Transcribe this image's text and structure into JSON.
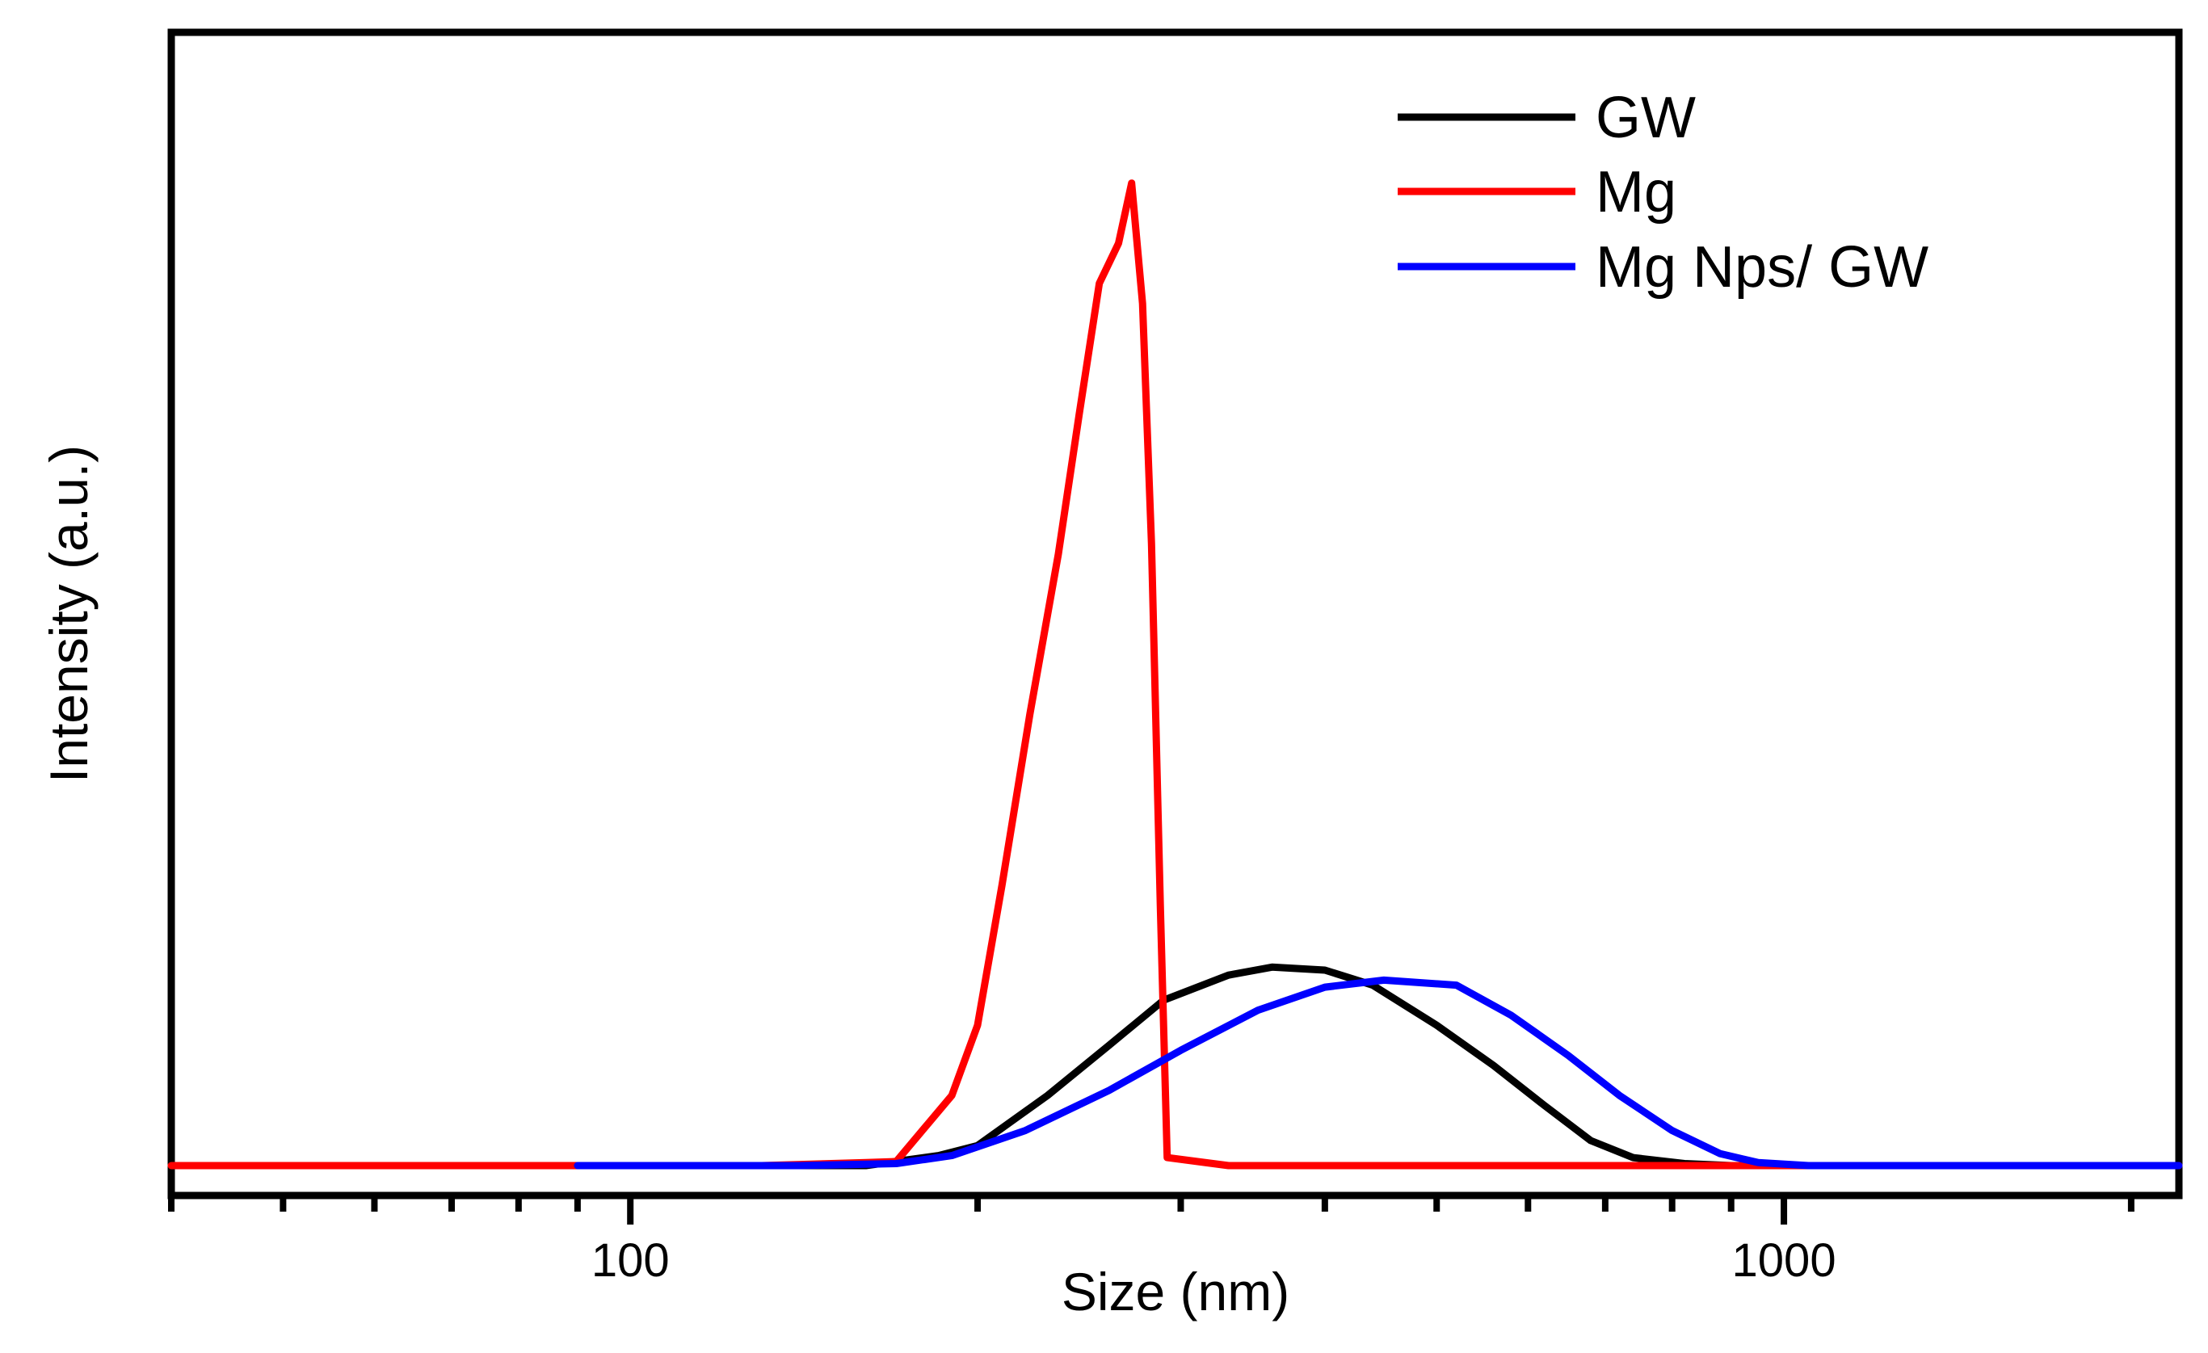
{
  "chart_data": {
    "type": "line",
    "title": "",
    "xlabel": "Size (nm)",
    "ylabel": "Intensity (a.u.)",
    "xscale": "log",
    "xlim": [
      40,
      2200
    ],
    "ylim": [
      0,
      1.07
    ],
    "x_ticks": [
      {
        "value": 100,
        "label": "100"
      },
      {
        "value": 1000,
        "label": "1000"
      }
    ],
    "y_ticks_shown": false,
    "grid": false,
    "legend_position": "top-right",
    "series": [
      {
        "name": "GW",
        "color": "#000000",
        "points": [
          [
            40,
            0
          ],
          [
            120,
            0
          ],
          [
            160,
            0
          ],
          [
            185,
            0.01
          ],
          [
            200,
            0.02
          ],
          [
            230,
            0.07
          ],
          [
            260,
            0.12
          ],
          [
            290,
            0.165
          ],
          [
            330,
            0.19
          ],
          [
            360,
            0.198
          ],
          [
            400,
            0.195
          ],
          [
            440,
            0.18
          ],
          [
            500,
            0.14
          ],
          [
            560,
            0.1
          ],
          [
            620,
            0.06
          ],
          [
            680,
            0.025
          ],
          [
            740,
            0.008
          ],
          [
            820,
            0.002
          ],
          [
            900,
            0
          ],
          [
            2200,
            0
          ]
        ]
      },
      {
        "name": "Mg",
        "color": "#ff0000",
        "points": [
          [
            40,
            0
          ],
          [
            130,
            0
          ],
          [
            160,
            0.003
          ],
          [
            170,
            0.004
          ],
          [
            190,
            0.07
          ],
          [
            200,
            0.14
          ],
          [
            210,
            0.28
          ],
          [
            222,
            0.45
          ],
          [
            235,
            0.61
          ],
          [
            245,
            0.75
          ],
          [
            255,
            0.88
          ],
          [
            265,
            0.92
          ],
          [
            272,
            0.98
          ],
          [
            278,
            0.86
          ],
          [
            283,
            0.62
          ],
          [
            288,
            0.26
          ],
          [
            292,
            0.008
          ],
          [
            330,
            0
          ],
          [
            2200,
            0
          ]
        ]
      },
      {
        "name": "Mg Nps/ GW",
        "color": "#0000ff",
        "points": [
          [
            90,
            0
          ],
          [
            140,
            0
          ],
          [
            170,
            0.002
          ],
          [
            190,
            0.01
          ],
          [
            220,
            0.035
          ],
          [
            260,
            0.075
          ],
          [
            300,
            0.115
          ],
          [
            350,
            0.155
          ],
          [
            400,
            0.178
          ],
          [
            450,
            0.185
          ],
          [
            520,
            0.18
          ],
          [
            580,
            0.15
          ],
          [
            650,
            0.11
          ],
          [
            720,
            0.07
          ],
          [
            800,
            0.035
          ],
          [
            880,
            0.012
          ],
          [
            950,
            0.003
          ],
          [
            1050,
            0
          ],
          [
            2200,
            0
          ]
        ]
      }
    ]
  }
}
